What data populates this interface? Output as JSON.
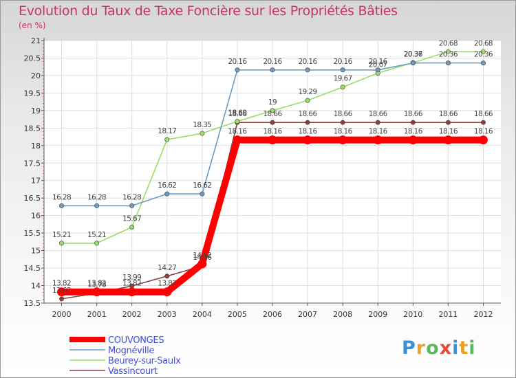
{
  "title": "Evolution du Taux de Taxe Foncière sur les Propriétés Bâties",
  "subtitle": "(en %)",
  "logo": [
    "P",
    "r",
    "o",
    "x",
    "i",
    "t",
    "i"
  ],
  "chart_data": {
    "type": "line",
    "title": "Evolution du Taux de Taxe Foncière sur les Propriétés Bâties",
    "ylabel": "(en %)",
    "xlabel": "",
    "x": [
      2000,
      2001,
      2002,
      2003,
      2004,
      2005,
      2006,
      2007,
      2008,
      2009,
      2010,
      2011,
      2012
    ],
    "ylim": [
      13.5,
      21
    ],
    "yticks": [
      "13.5",
      "14",
      "14.5",
      "15",
      "15.5",
      "16",
      "16.5",
      "17",
      "17.5",
      "18",
      "18.5",
      "19",
      "19.5",
      "20",
      "20.5",
      "21"
    ],
    "grid": true,
    "series": [
      {
        "name": "COUVONGES",
        "color": "#ff0000",
        "values": [
          13.82,
          13.82,
          13.82,
          13.82,
          14.62,
          18.16,
          18.16,
          18.16,
          18.16,
          18.16,
          18.16,
          18.16,
          18.16
        ],
        "labels": [
          "13.82",
          "13.82",
          "13.82",
          "13.82",
          "14.62",
          "18.16",
          "18.16",
          "18.16",
          "18.16",
          "18.16",
          "18.16",
          "18.16",
          "18.16"
        ]
      },
      {
        "name": "Mognéville",
        "color": "#6b9ac4",
        "values": [
          16.28,
          16.28,
          16.28,
          16.62,
          16.62,
          20.16,
          20.16,
          20.16,
          20.16,
          20.16,
          20.36,
          20.36,
          20.36
        ],
        "labels": [
          "16.28",
          "16.28",
          "16.28",
          "16.62",
          "16.62",
          "20.16",
          "20.16",
          "20.16",
          "20.16",
          "20.16",
          "20.36",
          "20.36",
          "20.36"
        ]
      },
      {
        "name": "Beurey-sur-Saulx",
        "color": "#99dd66",
        "values": [
          15.21,
          15.21,
          15.67,
          18.17,
          18.35,
          18.69,
          19,
          19.29,
          19.67,
          20.07,
          20.37,
          20.68,
          20.68
        ],
        "labels": [
          "15.21",
          "15.21",
          "15.67",
          "18.17",
          "18.35",
          "18.69",
          "19",
          "19.29",
          "19.67",
          "20.07",
          "20.37",
          "20.68",
          "20.68"
        ]
      },
      {
        "name": "Vassincourt",
        "color": "#8b4040",
        "values": [
          13.62,
          13.78,
          13.99,
          14.27,
          14.56,
          18.66,
          18.66,
          18.66,
          18.66,
          18.66,
          18.66,
          18.66,
          18.66
        ],
        "labels": [
          "13.62",
          "13.78",
          "13.99",
          "14.27",
          "14.56",
          "18.66",
          "18.66",
          "18.66",
          "18.66",
          "18.66",
          "18.66",
          "18.66",
          "18.66"
        ]
      }
    ],
    "legend": [
      "COUVONGES",
      "Mognéville",
      "Beurey-sur-Saulx",
      "Vassincourt"
    ],
    "legend_placement": "bottom-left"
  }
}
